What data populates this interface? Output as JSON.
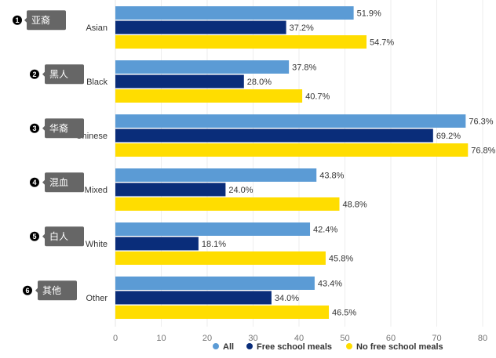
{
  "chart_data": {
    "type": "bar",
    "orientation": "horizontal",
    "title": "",
    "xlabel": "",
    "ylabel": "",
    "xlim": [
      0,
      80
    ],
    "x_ticks": [
      0,
      10,
      20,
      30,
      40,
      50,
      60,
      70,
      80
    ],
    "grid": true,
    "value_suffix": "%",
    "categories": [
      "Asian",
      "Black",
      "Chinese",
      "Mixed",
      "White",
      "Other"
    ],
    "series": [
      {
        "name": "All",
        "color": "#5b9bd5",
        "values": [
          51.9,
          37.8,
          76.3,
          43.8,
          42.4,
          43.4
        ]
      },
      {
        "name": "Free school meals",
        "color": "#0a2d7a",
        "values": [
          37.2,
          28.0,
          69.2,
          24.0,
          18.1,
          34.0
        ]
      },
      {
        "name": "No free school meals",
        "color": "#ffdd00",
        "values": [
          54.7,
          40.7,
          76.8,
          48.8,
          45.8,
          46.5
        ]
      }
    ],
    "value_labels": [
      [
        "51.9%",
        "37.8%",
        "76.3%",
        "43.8%",
        "42.4%",
        "43.4%"
      ],
      [
        "37.2%",
        "28.0%",
        "69.2%",
        "24.0%",
        "18.1%",
        "34.0%"
      ],
      [
        "54.7%",
        "40.7%",
        "76.8%",
        "48.8%",
        "45.8%",
        "46.5%"
      ]
    ],
    "legend_position": "bottom",
    "annotations": [
      {
        "number": "1",
        "text": "亚裔",
        "category": "Asian"
      },
      {
        "number": "2",
        "text": "黑人",
        "category": "Black"
      },
      {
        "number": "3",
        "text": "华裔",
        "category": "Chinese"
      },
      {
        "number": "4",
        "text": "混血",
        "category": "Mixed"
      },
      {
        "number": "5",
        "text": "白人",
        "category": "White"
      },
      {
        "number": "6",
        "text": "其他",
        "category": "Other"
      }
    ]
  }
}
